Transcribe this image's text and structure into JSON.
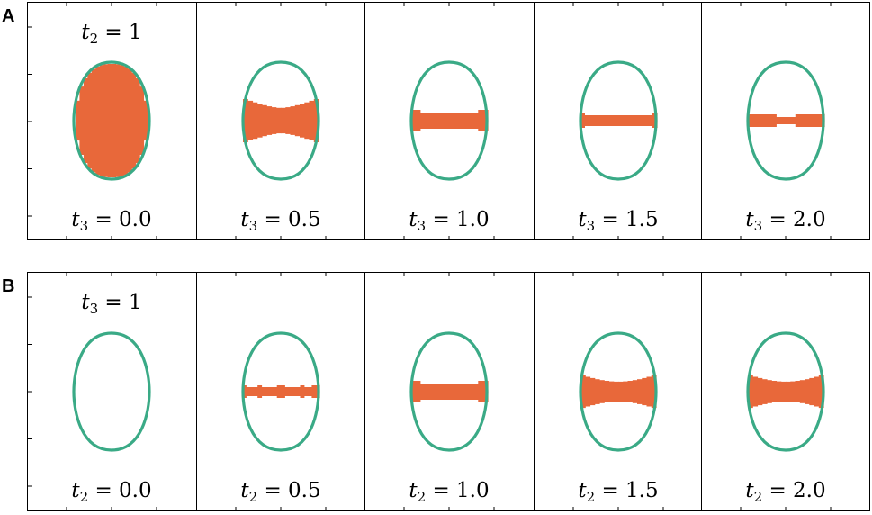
{
  "rows": [
    {
      "label": "A",
      "fixed": {
        "var": "t",
        "sub": "2",
        "op": " = ",
        "val": "1"
      },
      "sweep_var": {
        "var": "t",
        "sub": "3"
      },
      "panels": [
        {
          "value": "0.0",
          "shape": "full"
        },
        {
          "value": "0.5",
          "shape": "bow-wide"
        },
        {
          "value": "1.0",
          "shape": "bar-thick"
        },
        {
          "value": "1.5",
          "shape": "bar-thin"
        },
        {
          "value": "2.0",
          "shape": "bar-pinched"
        }
      ]
    },
    {
      "label": "B",
      "fixed": {
        "var": "t",
        "sub": "3",
        "op": " = ",
        "val": "1"
      },
      "sweep_var": {
        "var": "t",
        "sub": "2"
      },
      "panels": [
        {
          "value": "0.0",
          "shape": "none"
        },
        {
          "value": "0.5",
          "shape": "bar-beaded"
        },
        {
          "value": "1.0",
          "shape": "bar-thick"
        },
        {
          "value": "1.5",
          "shape": "bow-medium"
        },
        {
          "value": "2.0",
          "shape": "bow-medium"
        }
      ]
    }
  ],
  "colors": {
    "boundary": "#3aaa86",
    "region": "#e8683a",
    "frame": "#000000"
  }
}
